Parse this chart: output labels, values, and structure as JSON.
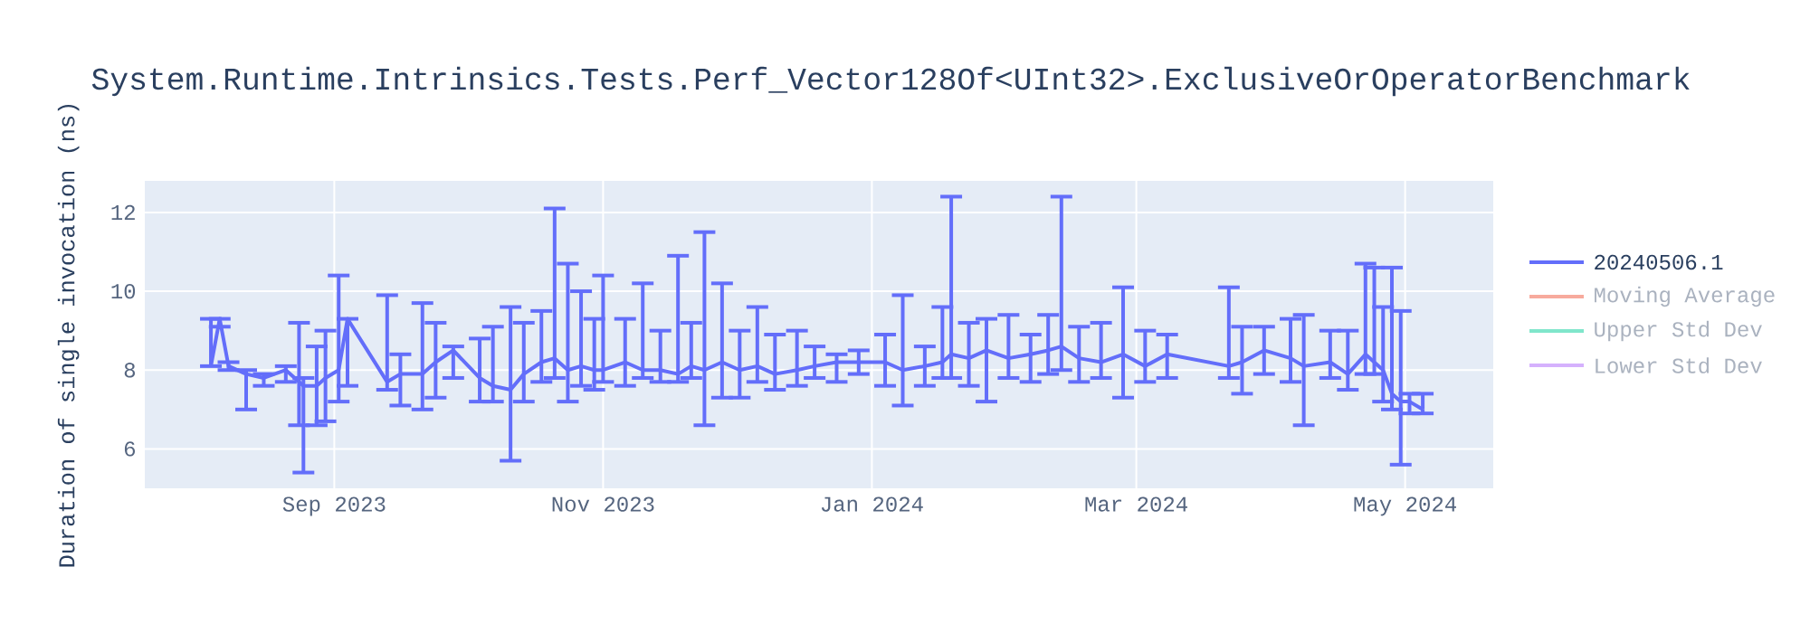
{
  "chart_data": {
    "type": "line",
    "title": "System.Runtime.Intrinsics.Tests.Perf_Vector128Of<UInt32>.ExclusiveOrOperatorBenchmark",
    "ylabel": "Duration of single invocation (ns)",
    "x": [
      "2023-08-04",
      "2023-08-06",
      "2023-08-08",
      "2023-08-12",
      "2023-08-16",
      "2023-08-21",
      "2023-08-24",
      "2023-08-25",
      "2023-08-28",
      "2023-08-30",
      "2023-09-02",
      "2023-09-04",
      "2023-09-13",
      "2023-09-16",
      "2023-09-21",
      "2023-09-24",
      "2023-09-28",
      "2023-10-04",
      "2023-10-07",
      "2023-10-11",
      "2023-10-14",
      "2023-10-18",
      "2023-10-21",
      "2023-10-24",
      "2023-10-27",
      "2023-10-30",
      "2023-11-01",
      "2023-11-06",
      "2023-11-10",
      "2023-11-14",
      "2023-11-18",
      "2023-11-21",
      "2023-11-24",
      "2023-11-28",
      "2023-12-02",
      "2023-12-06",
      "2023-12-10",
      "2023-12-15",
      "2023-12-19",
      "2023-12-24",
      "2023-12-29",
      "2024-01-04",
      "2024-01-08",
      "2024-01-13",
      "2024-01-17",
      "2024-01-19",
      "2024-01-23",
      "2024-01-27",
      "2024-02-01",
      "2024-02-06",
      "2024-02-10",
      "2024-02-13",
      "2024-02-17",
      "2024-02-22",
      "2024-02-27",
      "2024-03-03",
      "2024-03-08",
      "2024-03-22",
      "2024-03-25",
      "2024-03-30",
      "2024-04-05",
      "2024-04-08",
      "2024-04-14",
      "2024-04-18",
      "2024-04-22",
      "2024-04-24",
      "2024-04-26",
      "2024-04-28",
      "2024-04-30",
      "2024-05-02",
      "2024-05-05"
    ],
    "series": [
      {
        "name": "20240506.1",
        "color": "#636efa",
        "values": [
          8.1,
          9.3,
          8.1,
          7.9,
          7.8,
          8.0,
          7.7,
          7.6,
          7.6,
          7.8,
          8.0,
          9.3,
          7.7,
          7.9,
          7.9,
          8.2,
          8.5,
          7.8,
          7.6,
          7.5,
          7.9,
          8.2,
          8.3,
          8.0,
          8.1,
          8.0,
          8.0,
          8.2,
          8.0,
          8.0,
          7.9,
          8.1,
          8.0,
          8.2,
          8.0,
          8.1,
          7.9,
          8.0,
          8.1,
          8.2,
          8.2,
          8.2,
          8.0,
          8.1,
          8.2,
          8.4,
          8.3,
          8.5,
          8.3,
          8.4,
          8.5,
          8.6,
          8.3,
          8.2,
          8.4,
          8.1,
          8.4,
          8.1,
          8.2,
          8.5,
          8.3,
          8.1,
          8.2,
          7.9,
          8.4,
          8.2,
          8.0,
          7.4,
          7.2,
          7.2,
          7.0
        ],
        "errors": [
          [
            8.1,
            9.3
          ],
          [
            9.1,
            9.3
          ],
          [
            8.0,
            8.2
          ],
          [
            7.0,
            8.0
          ],
          [
            7.6,
            7.9
          ],
          [
            7.7,
            8.1
          ],
          [
            6.6,
            9.2
          ],
          [
            5.4,
            7.8
          ],
          [
            6.6,
            8.6
          ],
          [
            6.7,
            9.0
          ],
          [
            7.2,
            10.4
          ],
          [
            7.6,
            9.3
          ],
          [
            7.5,
            9.9
          ],
          [
            7.1,
            8.4
          ],
          [
            7.0,
            9.7
          ],
          [
            7.3,
            9.2
          ],
          [
            7.8,
            8.6
          ],
          [
            7.2,
            8.8
          ],
          [
            7.2,
            9.1
          ],
          [
            5.7,
            9.6
          ],
          [
            7.2,
            9.2
          ],
          [
            7.7,
            9.5
          ],
          [
            7.8,
            12.1
          ],
          [
            7.2,
            10.7
          ],
          [
            7.6,
            10.0
          ],
          [
            7.5,
            9.3
          ],
          [
            7.7,
            10.4
          ],
          [
            7.6,
            9.3
          ],
          [
            7.8,
            10.2
          ],
          [
            7.7,
            9.0
          ],
          [
            7.7,
            10.9
          ],
          [
            7.8,
            9.2
          ],
          [
            6.6,
            11.5
          ],
          [
            7.3,
            10.2
          ],
          [
            7.3,
            9.0
          ],
          [
            7.7,
            9.6
          ],
          [
            7.5,
            8.9
          ],
          [
            7.6,
            9.0
          ],
          [
            7.8,
            8.6
          ],
          [
            7.7,
            8.4
          ],
          [
            7.9,
            8.5
          ],
          [
            7.6,
            8.9
          ],
          [
            7.1,
            9.9
          ],
          [
            7.6,
            8.6
          ],
          [
            7.8,
            9.6
          ],
          [
            7.8,
            12.4
          ],
          [
            7.6,
            9.2
          ],
          [
            7.2,
            9.3
          ],
          [
            7.8,
            9.4
          ],
          [
            7.7,
            8.9
          ],
          [
            7.9,
            9.4
          ],
          [
            8.0,
            12.4
          ],
          [
            7.7,
            9.1
          ],
          [
            7.8,
            9.2
          ],
          [
            7.3,
            10.1
          ],
          [
            7.7,
            9.0
          ],
          [
            7.8,
            8.9
          ],
          [
            7.8,
            10.1
          ],
          [
            7.4,
            9.1
          ],
          [
            7.9,
            9.1
          ],
          [
            7.7,
            9.3
          ],
          [
            6.6,
            9.4
          ],
          [
            7.8,
            9.0
          ],
          [
            7.5,
            9.0
          ],
          [
            7.9,
            10.7
          ],
          [
            7.9,
            10.6
          ],
          [
            7.2,
            9.6
          ],
          [
            7.0,
            10.6
          ],
          [
            5.6,
            9.5
          ],
          [
            6.9,
            7.4
          ],
          [
            6.9,
            7.4
          ]
        ]
      },
      {
        "name": "Moving Average",
        "color": "#f7aa9d",
        "values": [
          null,
          null,
          null,
          null,
          null,
          null,
          null,
          null,
          null,
          null,
          null,
          null,
          null,
          null,
          null,
          null,
          null,
          null,
          null,
          null,
          null,
          null,
          null,
          null,
          null,
          null,
          null,
          null,
          null,
          null,
          null,
          null,
          null,
          null,
          null,
          null,
          null,
          null,
          null,
          null,
          null,
          null,
          null,
          null,
          null,
          null,
          null,
          null,
          null,
          null,
          null,
          null,
          null,
          null,
          null,
          null,
          null,
          null,
          null,
          null,
          null,
          null,
          null,
          null,
          null,
          null,
          null,
          null,
          null,
          null,
          null
        ]
      },
      {
        "name": "Upper Std Dev",
        "color": "#80e6cb",
        "values": [
          null,
          null,
          null,
          null,
          null,
          null,
          null,
          null,
          null,
          null,
          null,
          null,
          null,
          null,
          null,
          null,
          null,
          null,
          null,
          null,
          null,
          null,
          null,
          null,
          null,
          null,
          null,
          null,
          null,
          null,
          null,
          null,
          null,
          null,
          null,
          null,
          null,
          null,
          null,
          null,
          null,
          null,
          null,
          null,
          null,
          null,
          null,
          null,
          null,
          null,
          null,
          null,
          null,
          null,
          null,
          null,
          null,
          null,
          null,
          null,
          null,
          null,
          null,
          null,
          null,
          null,
          null,
          null,
          null,
          null,
          null
        ]
      },
      {
        "name": "Lower Std Dev",
        "color": "#d5b1fd",
        "values": [
          null,
          null,
          null,
          null,
          null,
          null,
          null,
          null,
          null,
          null,
          null,
          null,
          null,
          null,
          null,
          null,
          null,
          null,
          null,
          null,
          null,
          null,
          null,
          null,
          null,
          null,
          null,
          null,
          null,
          null,
          null,
          null,
          null,
          null,
          null,
          null,
          null,
          null,
          null,
          null,
          null,
          null,
          null,
          null,
          null,
          null,
          null,
          null,
          null,
          null,
          null,
          null,
          null,
          null,
          null,
          null,
          null,
          null,
          null,
          null,
          null,
          null,
          null,
          null,
          null,
          null,
          null,
          null,
          null,
          null,
          null
        ]
      }
    ],
    "xlim": [
      "2023-07-20",
      "2024-05-21"
    ],
    "xticks": [
      {
        "value": "2023-09-01",
        "label": "Sep 2023"
      },
      {
        "value": "2023-11-01",
        "label": "Nov 2023"
      },
      {
        "value": "2024-01-01",
        "label": "Jan 2024"
      },
      {
        "value": "2024-03-01",
        "label": "Mar 2024"
      },
      {
        "value": "2024-05-01",
        "label": "May 2024"
      }
    ],
    "ylim": [
      5,
      12.8
    ],
    "yticks": [
      6,
      8,
      10,
      12
    ],
    "grid": true,
    "legend": "top right",
    "marker": "none",
    "line_style": "solid"
  }
}
